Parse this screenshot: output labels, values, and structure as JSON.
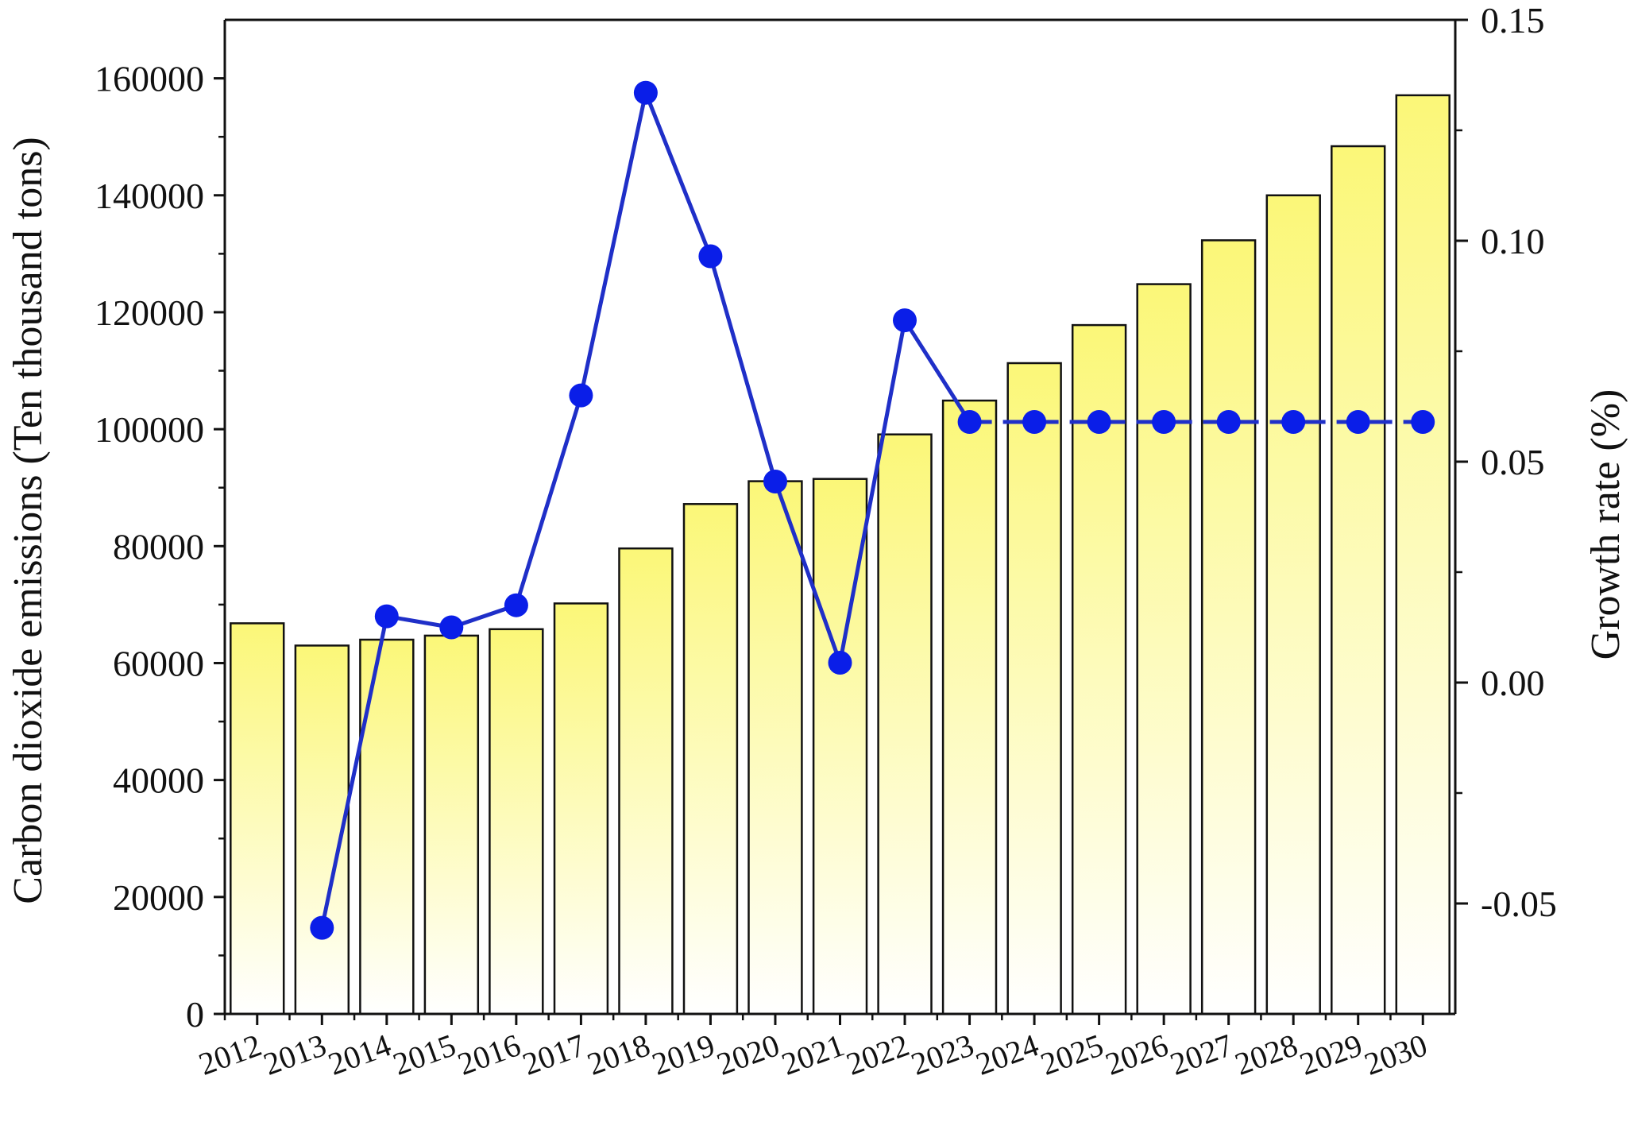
{
  "chart_data": {
    "type": "bar",
    "categories": [
      "2012",
      "2013",
      "2014",
      "2015",
      "2016",
      "2017",
      "2018",
      "2019",
      "2020",
      "2021",
      "2022",
      "2023",
      "2024",
      "2025",
      "2026",
      "2027",
      "2028",
      "2029",
      "2030"
    ],
    "values": [
      66800,
      63000,
      64000,
      64700,
      65800,
      70200,
      79600,
      87200,
      91100,
      91500,
      99100,
      104900,
      111300,
      117800,
      124800,
      132300,
      140000,
      148400,
      157100
    ],
    "ylabel": "Carbon dioxide emissions (Ten thousand tons)",
    "ylim": [
      0,
      170000
    ],
    "yticks": [
      0,
      20000,
      40000,
      60000,
      80000,
      100000,
      120000,
      140000,
      160000
    ],
    "y2label": "Growth rate (%)",
    "y2lim": [
      -0.075,
      0.15
    ],
    "y2ticks": [
      -0.05,
      0.0,
      0.05,
      0.1,
      0.15
    ],
    "y2tick_labels": [
      "-0.05",
      "0.00",
      "0.05",
      "0.10",
      "0.15"
    ],
    "growth_series": {
      "axis": "right",
      "x": [
        "2013",
        "2014",
        "2015",
        "2016",
        "2017",
        "2018",
        "2019",
        "2020",
        "2021",
        "2022",
        "2023",
        "2024",
        "2025",
        "2026",
        "2027",
        "2028",
        "2029",
        "2030"
      ],
      "values": [
        -0.0555,
        0.015,
        0.0125,
        0.0175,
        0.065,
        0.1335,
        0.0965,
        0.0455,
        0.0045,
        0.082,
        0.059,
        0.059,
        0.059,
        0.059,
        0.059,
        0.059,
        0.059,
        0.059
      ],
      "solid_through": "2023",
      "dashed_from": "2023"
    },
    "grid": false,
    "legend": "none",
    "colors": {
      "bar_top": "#fbf778",
      "bar_bottom": "#ffffff",
      "bar_stroke": "#111111",
      "line": "#1f2fc8",
      "marker": "#0a1ee8",
      "axis": "#111111"
    }
  }
}
